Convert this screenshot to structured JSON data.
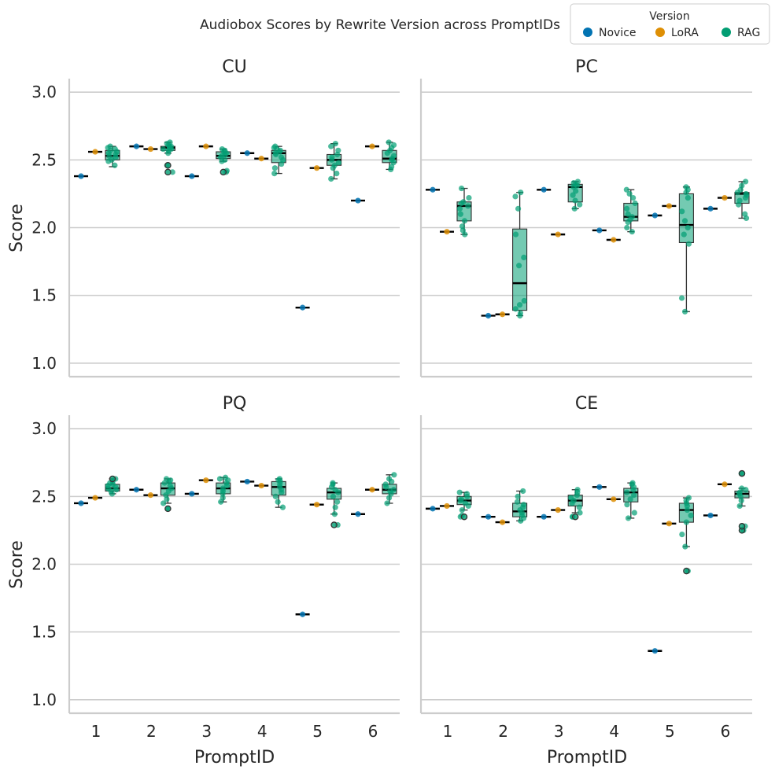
{
  "chart_data": {
    "type": "box-strip",
    "suptitle": "Audiobox Scores by Rewrite Version across PromptIDs",
    "legend": {
      "title": "Version",
      "placement": "top-right",
      "entries": [
        {
          "label": "Novice",
          "color": "#0173b2"
        },
        {
          "label": "LoRA",
          "color": "#de8f05"
        },
        {
          "label": "RAG",
          "color": "#029e73"
        }
      ]
    },
    "x_label": "PromptID",
    "y_label": "Score",
    "x_categories": [
      "1",
      "2",
      "3",
      "4",
      "5",
      "6"
    ],
    "y_ticks": [
      "1.0",
      "1.5",
      "2.0",
      "2.5",
      "3.0"
    ],
    "ylim": [
      0.9,
      3.1
    ],
    "grid": true,
    "panels": [
      {
        "title": "CU",
        "novice": [
          2.38,
          2.6,
          2.38,
          2.55,
          1.41,
          2.2
        ],
        "lora": [
          2.56,
          2.58,
          2.6,
          2.51,
          2.44,
          2.6
        ],
        "rag": [
          {
            "q1": 2.5,
            "median": 2.53,
            "q3": 2.57,
            "wlo": 2.45,
            "whi": 2.6,
            "points": [
              2.46,
              2.49,
              2.5,
              2.52,
              2.53,
              2.54,
              2.55,
              2.56,
              2.57,
              2.58,
              2.59,
              2.6
            ]
          },
          {
            "q1": 2.57,
            "median": 2.59,
            "q3": 2.6,
            "wlo": 2.55,
            "whi": 2.63,
            "outliers": [
              2.41,
              2.46
            ],
            "points": [
              2.55,
              2.57,
              2.58,
              2.58,
              2.59,
              2.6,
              2.6,
              2.61,
              2.62,
              2.63,
              2.41,
              2.46
            ]
          },
          {
            "q1": 2.51,
            "median": 2.53,
            "q3": 2.56,
            "wlo": 2.49,
            "whi": 2.58,
            "outliers": [
              2.41
            ],
            "points": [
              2.49,
              2.5,
              2.52,
              2.53,
              2.54,
              2.55,
              2.56,
              2.57,
              2.58,
              2.41,
              2.42
            ]
          },
          {
            "q1": 2.48,
            "median": 2.55,
            "q3": 2.57,
            "wlo": 2.4,
            "whi": 2.6,
            "points": [
              2.4,
              2.44,
              2.47,
              2.5,
              2.52,
              2.54,
              2.55,
              2.56,
              2.57,
              2.58,
              2.59,
              2.6
            ]
          },
          {
            "q1": 2.46,
            "median": 2.5,
            "q3": 2.54,
            "wlo": 2.36,
            "whi": 2.62,
            "points": [
              2.36,
              2.4,
              2.44,
              2.46,
              2.48,
              2.5,
              2.52,
              2.54,
              2.57,
              2.6,
              2.62
            ]
          },
          {
            "q1": 2.48,
            "median": 2.51,
            "q3": 2.57,
            "wlo": 2.43,
            "whi": 2.63,
            "points": [
              2.43,
              2.45,
              2.48,
              2.5,
              2.51,
              2.53,
              2.55,
              2.57,
              2.59,
              2.61,
              2.63
            ]
          }
        ]
      },
      {
        "title": "PC",
        "novice": [
          2.28,
          1.35,
          2.28,
          1.98,
          2.09,
          2.14
        ],
        "lora": [
          1.97,
          1.36,
          1.95,
          1.91,
          2.16,
          2.22
        ],
        "rag": [
          {
            "q1": 2.05,
            "median": 2.16,
            "q3": 2.19,
            "wlo": 1.95,
            "whi": 2.29,
            "points": [
              1.95,
              1.98,
              2.01,
              2.05,
              2.1,
              2.14,
              2.16,
              2.18,
              2.19,
              2.22,
              2.29
            ]
          },
          {
            "q1": 1.39,
            "median": 1.59,
            "q3": 1.99,
            "wlo": 1.35,
            "whi": 2.26,
            "points": [
              1.35,
              1.37,
              1.4,
              1.43,
              1.46,
              1.72,
              1.78,
              1.95,
              2.14,
              2.23,
              2.26
            ]
          },
          {
            "q1": 2.19,
            "median": 2.3,
            "q3": 2.32,
            "wlo": 2.14,
            "whi": 2.34,
            "points": [
              2.14,
              2.17,
              2.2,
              2.24,
              2.27,
              2.3,
              2.31,
              2.32,
              2.33,
              2.34
            ]
          },
          {
            "q1": 2.05,
            "median": 2.08,
            "q3": 2.18,
            "wlo": 1.97,
            "whi": 2.28,
            "points": [
              1.97,
              2.0,
              2.04,
              2.06,
              2.08,
              2.1,
              2.14,
              2.18,
              2.22,
              2.25,
              2.28
            ]
          },
          {
            "q1": 1.89,
            "median": 2.02,
            "q3": 2.25,
            "wlo": 1.38,
            "whi": 2.3,
            "points": [
              1.38,
              1.48,
              1.88,
              1.95,
              2.0,
              2.05,
              2.12,
              2.22,
              2.26,
              2.28,
              2.3
            ]
          },
          {
            "q1": 2.18,
            "median": 2.25,
            "q3": 2.26,
            "wlo": 2.07,
            "whi": 2.34,
            "points": [
              2.07,
              2.1,
              2.17,
              2.2,
              2.22,
              2.24,
              2.25,
              2.26,
              2.28,
              2.31,
              2.34
            ]
          }
        ]
      },
      {
        "title": "PQ",
        "novice": [
          2.45,
          2.55,
          2.52,
          2.61,
          1.63,
          2.37
        ],
        "lora": [
          2.49,
          2.51,
          2.62,
          2.58,
          2.44,
          2.55
        ],
        "rag": [
          {
            "q1": 2.54,
            "median": 2.56,
            "q3": 2.59,
            "wlo": 2.52,
            "whi": 2.63,
            "outliers": [
              2.63
            ],
            "points": [
              2.52,
              2.54,
              2.55,
              2.56,
              2.57,
              2.58,
              2.59,
              2.6,
              2.61,
              2.63
            ]
          },
          {
            "q1": 2.51,
            "median": 2.56,
            "q3": 2.6,
            "wlo": 2.45,
            "whi": 2.63,
            "outliers": [
              2.41
            ],
            "points": [
              2.45,
              2.48,
              2.51,
              2.54,
              2.56,
              2.58,
              2.6,
              2.61,
              2.62,
              2.63,
              2.41
            ]
          },
          {
            "q1": 2.52,
            "median": 2.56,
            "q3": 2.6,
            "wlo": 2.46,
            "whi": 2.64,
            "points": [
              2.46,
              2.49,
              2.52,
              2.54,
              2.56,
              2.58,
              2.6,
              2.62,
              2.63,
              2.64
            ]
          },
          {
            "q1": 2.51,
            "median": 2.57,
            "q3": 2.61,
            "wlo": 2.42,
            "whi": 2.63,
            "points": [
              2.42,
              2.46,
              2.5,
              2.53,
              2.55,
              2.57,
              2.59,
              2.61,
              2.62,
              2.63
            ]
          },
          {
            "q1": 2.48,
            "median": 2.53,
            "q3": 2.56,
            "wlo": 2.37,
            "whi": 2.6,
            "outliers": [
              2.29
            ],
            "points": [
              2.37,
              2.42,
              2.46,
              2.5,
              2.53,
              2.55,
              2.57,
              2.59,
              2.6,
              2.29
            ]
          },
          {
            "q1": 2.52,
            "median": 2.55,
            "q3": 2.59,
            "wlo": 2.45,
            "whi": 2.66,
            "points": [
              2.45,
              2.49,
              2.52,
              2.54,
              2.55,
              2.57,
              2.59,
              2.61,
              2.63,
              2.66
            ]
          }
        ]
      },
      {
        "title": "CE",
        "novice": [
          2.41,
          2.35,
          2.35,
          2.57,
          1.36,
          2.36
        ],
        "lora": [
          2.43,
          2.31,
          2.4,
          2.48,
          2.3,
          2.59
        ],
        "rag": [
          {
            "q1": 2.44,
            "median": 2.47,
            "q3": 2.5,
            "wlo": 2.4,
            "whi": 2.53,
            "outliers": [
              2.35
            ],
            "points": [
              2.4,
              2.43,
              2.45,
              2.47,
              2.48,
              2.5,
              2.52,
              2.53,
              2.35,
              2.36
            ]
          },
          {
            "q1": 2.35,
            "median": 2.39,
            "q3": 2.45,
            "wlo": 2.32,
            "whi": 2.54,
            "points": [
              2.32,
              2.34,
              2.36,
              2.38,
              2.4,
              2.42,
              2.44,
              2.46,
              2.5,
              2.54
            ]
          },
          {
            "q1": 2.43,
            "median": 2.47,
            "q3": 2.51,
            "wlo": 2.38,
            "whi": 2.55,
            "outliers": [
              2.35
            ],
            "points": [
              2.38,
              2.42,
              2.45,
              2.47,
              2.49,
              2.51,
              2.53,
              2.55,
              2.35,
              2.35
            ]
          },
          {
            "q1": 2.46,
            "median": 2.53,
            "q3": 2.56,
            "wlo": 2.34,
            "whi": 2.6,
            "points": [
              2.34,
              2.38,
              2.44,
              2.48,
              2.51,
              2.53,
              2.55,
              2.57,
              2.59,
              2.6
            ]
          },
          {
            "q1": 2.31,
            "median": 2.4,
            "q3": 2.45,
            "wlo": 2.13,
            "whi": 2.49,
            "outliers": [
              1.95
            ],
            "points": [
              2.13,
              2.22,
              2.31,
              2.36,
              2.4,
              2.43,
              2.45,
              2.47,
              2.49,
              1.95
            ]
          },
          {
            "q1": 2.49,
            "median": 2.52,
            "q3": 2.54,
            "wlo": 2.43,
            "whi": 2.56,
            "outliers": [
              2.25,
              2.28,
              2.67
            ],
            "points": [
              2.43,
              2.47,
              2.5,
              2.52,
              2.53,
              2.55,
              2.56,
              2.25,
              2.28,
              2.67
            ]
          }
        ]
      }
    ]
  }
}
